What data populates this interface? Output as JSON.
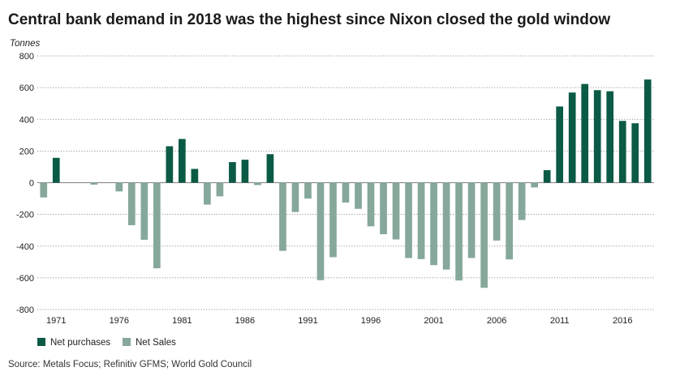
{
  "title": "Central bank demand in 2018 was the highest since Nixon closed the gold window",
  "source": "Source: Metals Focus; Refinitiv GFMS; World Gold Council",
  "colors": {
    "purchases": "#0b5a45",
    "sales": "#86a89b"
  },
  "chart_data": {
    "type": "bar",
    "ylabel": "Tonnes",
    "ylim": [
      -800,
      800
    ],
    "yticks": [
      800,
      600,
      400,
      200,
      0,
      -200,
      -400,
      -600,
      -800
    ],
    "xticks": [
      "1971",
      "1976",
      "1981",
      "1986",
      "1991",
      "1996",
      "2001",
      "2006",
      "2011",
      "2016"
    ],
    "grid": true,
    "legend_position": "bottom-left",
    "categories": [
      1970,
      1971,
      1972,
      1973,
      1974,
      1975,
      1976,
      1977,
      1978,
      1979,
      1980,
      1981,
      1982,
      1983,
      1984,
      1985,
      1986,
      1987,
      1988,
      1989,
      1990,
      1991,
      1992,
      1993,
      1994,
      1995,
      1996,
      1997,
      1998,
      1999,
      2000,
      2001,
      2002,
      2003,
      2004,
      2005,
      2006,
      2007,
      2008,
      2009,
      2010,
      2011,
      2012,
      2013,
      2014,
      2015,
      2016,
      2017,
      2018
    ],
    "values": [
      -93,
      157,
      0,
      0,
      -12,
      0,
      -55,
      -268,
      -360,
      -540,
      230,
      276,
      87,
      -138,
      -86,
      130,
      145,
      -15,
      180,
      -430,
      -185,
      -100,
      -615,
      -470,
      -125,
      -165,
      -275,
      -325,
      -358,
      -475,
      -482,
      -520,
      -548,
      -617,
      -475,
      -663,
      -365,
      -484,
      -235,
      -30,
      79,
      481,
      569,
      623,
      584,
      577,
      390,
      375,
      651
    ],
    "series": [
      {
        "name": "Net purchases",
        "key": "purchases"
      },
      {
        "name": "Net Sales",
        "key": "sales"
      }
    ]
  }
}
